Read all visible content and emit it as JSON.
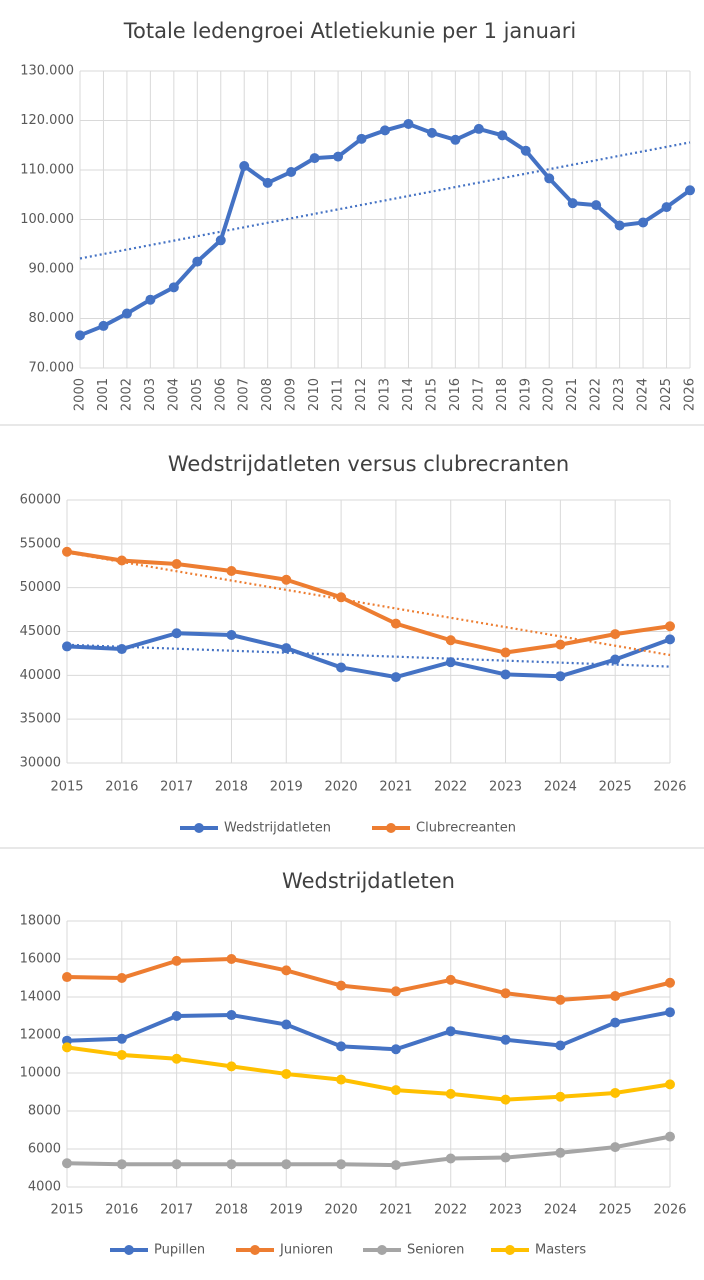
{
  "chart_data": [
    {
      "type": "line",
      "title": "Totale ledengroei Atletiekunie per 1 januari",
      "categories": [
        "2000",
        "2001",
        "2002",
        "2003",
        "2004",
        "2005",
        "2006",
        "2007",
        "2008",
        "2009",
        "2010",
        "2011",
        "2012",
        "2013",
        "2014",
        "2015",
        "2016",
        "2017",
        "2018",
        "2019",
        "2020",
        "2021",
        "2022",
        "2023",
        "2024",
        "2025",
        "2026"
      ],
      "series": [
        {
          "color": "#4472c4",
          "trendline": true,
          "values": [
            76600,
            78500,
            81000,
            83800,
            86300,
            91500,
            95800,
            110800,
            107400,
            109600,
            112400,
            112700,
            116300,
            118000,
            119300,
            117500,
            116100,
            118300,
            117000,
            113900,
            108300,
            103300,
            102900,
            98800,
            99400,
            102500,
            105900
          ]
        }
      ],
      "ylim": [
        70000,
        130000
      ],
      "yticks": [
        {
          "value": 70000,
          "label": "70.000"
        },
        {
          "value": 80000,
          "label": "80.000"
        },
        {
          "value": 90000,
          "label": "90.000"
        },
        {
          "value": 100000,
          "label": "100.000"
        },
        {
          "value": 110000,
          "label": "110.000"
        },
        {
          "value": 120000,
          "label": "120.000"
        },
        {
          "value": 130000,
          "label": "130.000"
        }
      ],
      "grid": true,
      "legend": false
    },
    {
      "type": "line",
      "title": "Wedstrijdatleten versus clubrecranten",
      "categories": [
        "2015",
        "2016",
        "2017",
        "2018",
        "2019",
        "2020",
        "2021",
        "2022",
        "2023",
        "2024",
        "2025",
        "2026"
      ],
      "series": [
        {
          "name": "Wedstrijdatleten",
          "color": "#4472c4",
          "trendline": true,
          "values": [
            43300,
            43000,
            44800,
            44600,
            43100,
            40900,
            39800,
            41500,
            40100,
            39900,
            41800,
            44100
          ]
        },
        {
          "name": "Clubrecreanten",
          "color": "#ed7d31",
          "trendline": true,
          "values": [
            54100,
            53100,
            52700,
            51900,
            50900,
            48900,
            45900,
            44000,
            42600,
            43500,
            44700,
            45600
          ]
        }
      ],
      "ylim": [
        30000,
        60000
      ],
      "yticks": [
        30000,
        35000,
        40000,
        45000,
        50000,
        55000,
        60000
      ],
      "grid": true,
      "legend": "bottom"
    },
    {
      "type": "line",
      "title": "Wedstrijdatleten",
      "categories": [
        "2015",
        "2016",
        "2017",
        "2018",
        "2019",
        "2020",
        "2021",
        "2022",
        "2023",
        "2024",
        "2025",
        "2026"
      ],
      "series": [
        {
          "name": "Pupillen",
          "color": "#4472c4",
          "values": [
            11700,
            11800,
            13000,
            13050,
            12550,
            11400,
            11250,
            12200,
            11750,
            11450,
            12650,
            13200
          ]
        },
        {
          "name": "Junioren",
          "color": "#ed7d31",
          "values": [
            15050,
            15000,
            15900,
            16000,
            15400,
            14600,
            14300,
            14900,
            14200,
            13850,
            14050,
            14750
          ]
        },
        {
          "name": "Senioren",
          "color": "#a5a5a5",
          "values": [
            5250,
            5200,
            5200,
            5200,
            5200,
            5200,
            5150,
            5500,
            5550,
            5800,
            6100,
            6650
          ]
        },
        {
          "name": "Masters",
          "color": "#ffc000",
          "values": [
            11350,
            10950,
            10750,
            10350,
            9950,
            9650,
            9100,
            8900,
            8600,
            8750,
            8950,
            9400
          ]
        }
      ],
      "ylim": [
        4000,
        18000
      ],
      "yticks": [
        4000,
        6000,
        8000,
        10000,
        12000,
        14000,
        16000,
        18000
      ],
      "grid": true,
      "legend": "bottom"
    }
  ]
}
